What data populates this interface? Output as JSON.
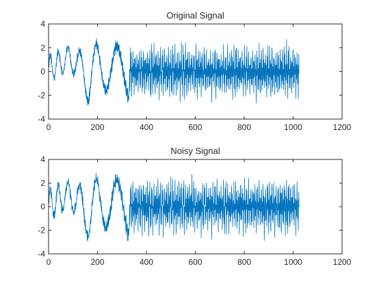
{
  "colors": {
    "line": "#0072BD",
    "axes": "#262626",
    "background": "#ffffff"
  },
  "chart_data": [
    {
      "type": "line",
      "title": "Original Signal",
      "xlabel": "",
      "ylabel": "",
      "xlim": [
        0,
        1200
      ],
      "ylim": [
        -4,
        4
      ],
      "xticks": [
        0,
        200,
        400,
        600,
        800,
        1000,
        1200
      ],
      "yticks": [
        -4,
        -2,
        0,
        2,
        4
      ],
      "grid": false,
      "series": [
        {
          "x_range": [
            1,
            1024
          ],
          "approx_envelope": [
            {
              "x": 1,
              "min": -1.0,
              "max": 1.5
            },
            {
              "x": 75,
              "min": -0.2,
              "max": 2.2
            },
            {
              "x": 120,
              "min": -0.5,
              "max": 2.1
            },
            {
              "x": 165,
              "min": -3.0,
              "max": 1.0
            },
            {
              "x": 195,
              "min": -1.0,
              "max": 2.7
            },
            {
              "x": 260,
              "min": -2.6,
              "max": 2.4
            },
            {
              "x": 325,
              "min": -2.8,
              "max": 2.9
            },
            {
              "x": 500,
              "min": -2.8,
              "max": 2.8
            },
            {
              "x": 800,
              "min": -2.7,
              "max": 2.7
            },
            {
              "x": 1024,
              "min": -2.8,
              "max": 2.8
            }
          ]
        }
      ]
    },
    {
      "type": "line",
      "title": "Noisy Signal",
      "xlabel": "",
      "ylabel": "",
      "xlim": [
        0,
        1200
      ],
      "ylim": [
        -4,
        4
      ],
      "xticks": [
        0,
        200,
        400,
        600,
        800,
        1000,
        1200
      ],
      "yticks": [
        -4,
        -2,
        0,
        2,
        4
      ],
      "grid": false,
      "series": [
        {
          "x_range": [
            1,
            1024
          ],
          "approx_envelope": [
            {
              "x": 1,
              "min": -1.2,
              "max": 1.6
            },
            {
              "x": 75,
              "min": -0.4,
              "max": 2.3
            },
            {
              "x": 120,
              "min": -0.7,
              "max": 2.2
            },
            {
              "x": 165,
              "min": -3.1,
              "max": 1.1
            },
            {
              "x": 195,
              "min": -1.2,
              "max": 2.8
            },
            {
              "x": 260,
              "min": -2.7,
              "max": 2.5
            },
            {
              "x": 325,
              "min": -2.9,
              "max": 3.0
            },
            {
              "x": 500,
              "min": -2.9,
              "max": 2.9
            },
            {
              "x": 800,
              "min": -2.8,
              "max": 2.8
            },
            {
              "x": 1024,
              "min": -2.9,
              "max": 2.9
            }
          ]
        }
      ]
    }
  ]
}
